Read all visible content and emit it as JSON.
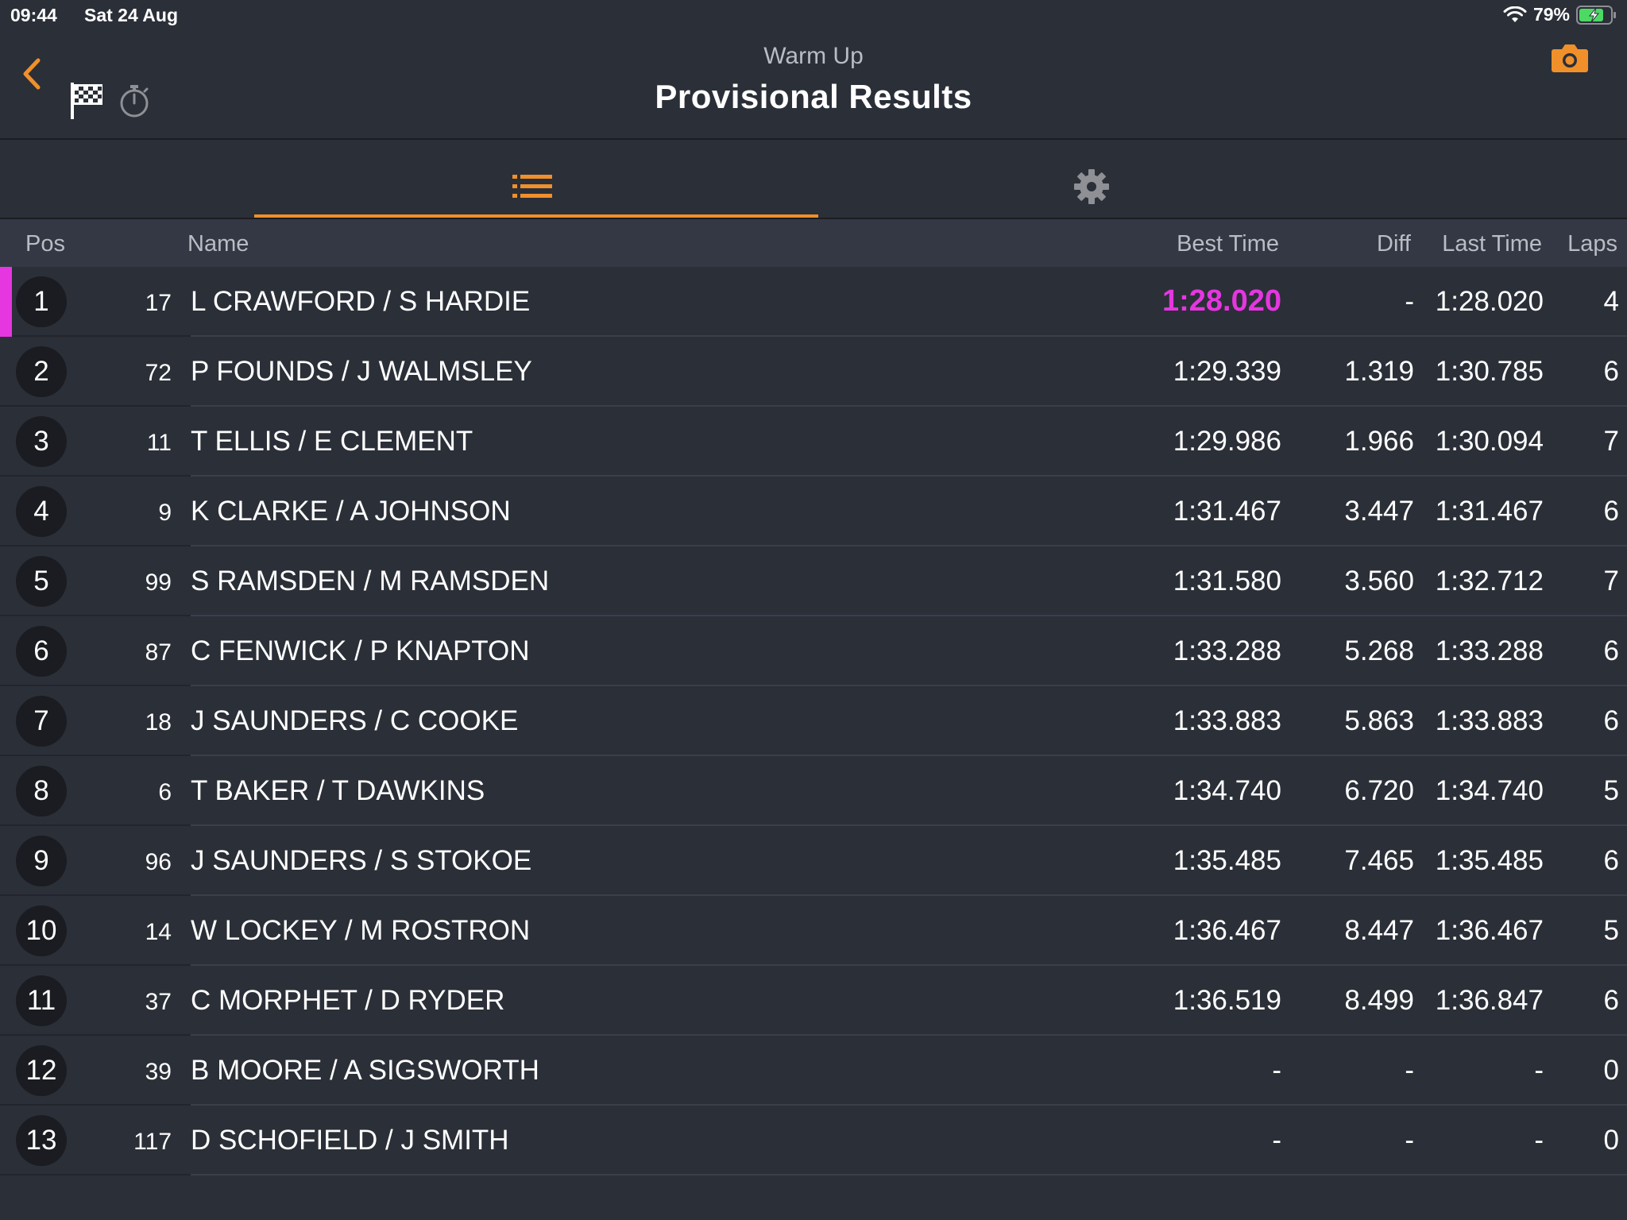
{
  "status_bar": {
    "time": "09:44",
    "date": "Sat 24 Aug",
    "battery": "79%"
  },
  "header": {
    "subtitle": "Warm Up",
    "title": "Provisional Results"
  },
  "colors": {
    "accent": "#f0902a",
    "fastest": "#e636e0",
    "background": "#2b2f38",
    "header_row": "#343844"
  },
  "tabs": [
    {
      "icon": "list-icon",
      "active": true
    },
    {
      "icon": "gear-icon",
      "active": false
    }
  ],
  "table": {
    "columns": {
      "pos": "Pos",
      "name": "Name",
      "best_time": "Best Time",
      "diff": "Diff",
      "last_time": "Last Time",
      "laps": "Laps"
    },
    "rows": [
      {
        "pos": "1",
        "number": "17",
        "name": "L CRAWFORD / S HARDIE",
        "best_time": "1:28.020",
        "diff": "-",
        "last_time": "1:28.020",
        "laps": "4",
        "fastest": true
      },
      {
        "pos": "2",
        "number": "72",
        "name": "P FOUNDS / J WALMSLEY",
        "best_time": "1:29.339",
        "diff": "1.319",
        "last_time": "1:30.785",
        "laps": "6"
      },
      {
        "pos": "3",
        "number": "11",
        "name": "T ELLIS / E CLEMENT",
        "best_time": "1:29.986",
        "diff": "1.966",
        "last_time": "1:30.094",
        "laps": "7"
      },
      {
        "pos": "4",
        "number": "9",
        "name": "K CLARKE / A JOHNSON",
        "best_time": "1:31.467",
        "diff": "3.447",
        "last_time": "1:31.467",
        "laps": "6"
      },
      {
        "pos": "5",
        "number": "99",
        "name": "S RAMSDEN / M RAMSDEN",
        "best_time": "1:31.580",
        "diff": "3.560",
        "last_time": "1:32.712",
        "laps": "7"
      },
      {
        "pos": "6",
        "number": "87",
        "name": "C FENWICK / P KNAPTON",
        "best_time": "1:33.288",
        "diff": "5.268",
        "last_time": "1:33.288",
        "laps": "6"
      },
      {
        "pos": "7",
        "number": "18",
        "name": "J SAUNDERS / C COOKE",
        "best_time": "1:33.883",
        "diff": "5.863",
        "last_time": "1:33.883",
        "laps": "6"
      },
      {
        "pos": "8",
        "number": "6",
        "name": "T BAKER / T DAWKINS",
        "best_time": "1:34.740",
        "diff": "6.720",
        "last_time": "1:34.740",
        "laps": "5"
      },
      {
        "pos": "9",
        "number": "96",
        "name": "J SAUNDERS / S STOKOE",
        "best_time": "1:35.485",
        "diff": "7.465",
        "last_time": "1:35.485",
        "laps": "6"
      },
      {
        "pos": "10",
        "number": "14",
        "name": "W LOCKEY / M ROSTRON",
        "best_time": "1:36.467",
        "diff": "8.447",
        "last_time": "1:36.467",
        "laps": "5"
      },
      {
        "pos": "11",
        "number": "37",
        "name": "C MORPHET / D RYDER",
        "best_time": "1:36.519",
        "diff": "8.499",
        "last_time": "1:36.847",
        "laps": "6"
      },
      {
        "pos": "12",
        "number": "39",
        "name": "B MOORE / A SIGSWORTH",
        "best_time": "-",
        "diff": "-",
        "last_time": "-",
        "laps": "0"
      },
      {
        "pos": "13",
        "number": "117",
        "name": "D SCHOFIELD / J SMITH",
        "best_time": "-",
        "diff": "-",
        "last_time": "-",
        "laps": "0"
      }
    ]
  }
}
